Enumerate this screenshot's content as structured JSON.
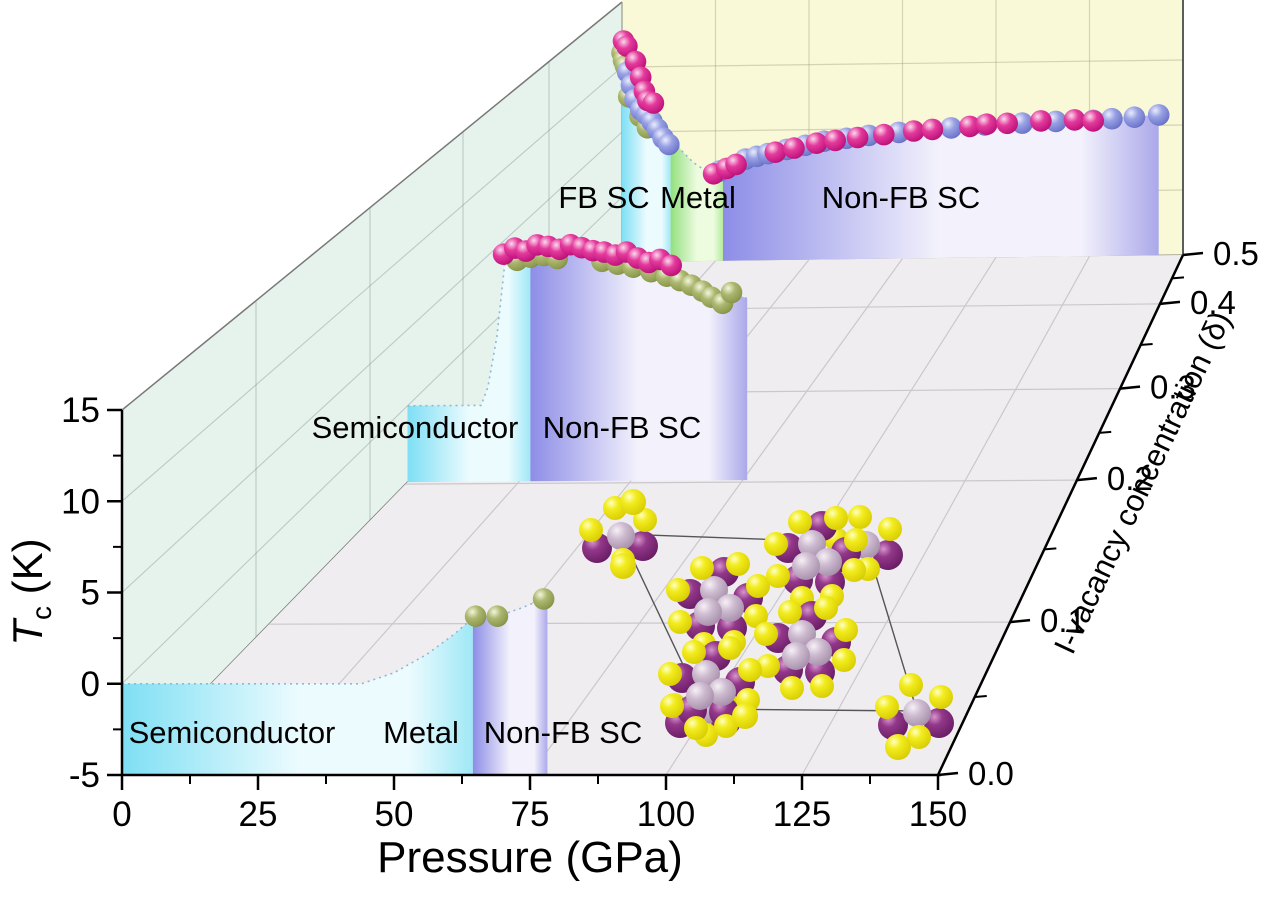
{
  "figure": {
    "kind": "3d-waterfall-phase-diagram",
    "background": "#FFFFFF"
  },
  "axes": {
    "pressure": {
      "title": "Pressure (GPa)",
      "ticks": [
        0,
        25,
        50,
        75,
        100,
        125,
        150
      ],
      "minor_step": 12.5,
      "range": [
        0,
        150
      ]
    },
    "tc": {
      "title": "Tc (K)",
      "title_symbol": "T",
      "title_subscript": "c",
      "title_suffix": " (K)",
      "ticks": [
        15,
        10,
        5,
        0,
        -5
      ],
      "minor_step": 2.5,
      "range": [
        -5,
        15
      ]
    },
    "delta": {
      "title": "I-vacancy concentration (δ)",
      "ticks": [
        "0.0",
        "0.1",
        "0.2",
        "0.3",
        "0.4",
        "0.5"
      ],
      "range": [
        0,
        0.5
      ]
    }
  },
  "colors": {
    "back_wall": "#FAF9D7",
    "left_wall": "#E6F2EC",
    "floor": "#EFEDEF",
    "grid": "#CBC8CC",
    "band_semiconductor": [
      "#7EDFF4",
      "#EBFBFE",
      "#9FE8F6"
    ],
    "band_metal": [
      "#92E07E",
      "#EDFBDF",
      "#B4EC9C"
    ],
    "band_sc": [
      "#8D8DE7",
      "#F3F2FC",
      "#ABA8EA"
    ],
    "point_magenta": "#D6248C",
    "point_blue": "#8089D8",
    "point_olive": "#9CA763",
    "atom_yellow": "#F2EC1E",
    "atom_purple": "#7D2B74",
    "atom_lavender": "#C2AEC6",
    "dotted_boundary": "#8FB8D6"
  },
  "chart_data": {
    "type": "scatter",
    "projection": "3d-perspective",
    "xlabel": "Pressure (GPa)",
    "ylabel": "Tc (K)",
    "zlabel": "I-vacancy concentration (δ)",
    "xlim": [
      0,
      150
    ],
    "ylim": [
      -5,
      15
    ],
    "zlim": [
      0,
      0.5
    ],
    "slices": [
      {
        "delta": 0.0,
        "region_labels": [
          {
            "text": "Semiconductor",
            "x": 232,
            "y": 743
          },
          {
            "text": "Metal",
            "x": 421,
            "y": 743
          },
          {
            "text": "Non-FB SC",
            "x": 563,
            "y": 743
          }
        ],
        "bands": [
          {
            "kind": "semiconductor",
            "profile": [
              [
                0,
                0
              ],
              [
                44,
                0
              ],
              [
                50,
                0.6
              ],
              [
                56,
                1.6
              ],
              [
                61,
                2.7
              ],
              [
                64.5,
                3.6
              ]
            ]
          },
          {
            "kind": "sc",
            "profile": [
              [
                64.5,
                3.6
              ],
              [
                65,
                3.7
              ],
              [
                69,
                3.7
              ],
              [
                73,
                4.1
              ],
              [
                77.5,
                4.65
              ],
              [
                78.2,
                4.7
              ]
            ]
          }
        ],
        "series": [
          {
            "color": "olive",
            "points": [
              [
                65,
                3.7
              ],
              [
                69,
                3.7
              ],
              [
                77.5,
                4.65
              ]
            ]
          }
        ]
      },
      {
        "delta": 0.25,
        "region_labels": [
          {
            "text": "Semiconductor",
            "x": 415,
            "y": 438
          },
          {
            "text": "Non-FB SC",
            "x": 622,
            "y": 438
          }
        ],
        "bands": [
          {
            "kind": "semiconductor",
            "profile": [
              [
                0,
                0
              ],
              [
                16.5,
                0
              ],
              [
                18,
                1.2
              ],
              [
                20,
                4.5
              ],
              [
                22,
                9.9
              ],
              [
                24,
                10.3
              ],
              [
                27.5,
                10.45
              ]
            ]
          },
          {
            "kind": "sc",
            "profile": [
              [
                27.5,
                10.45
              ],
              [
                29,
                10.5
              ],
              [
                33,
                10.4
              ],
              [
                36.5,
                10.5
              ],
              [
                41,
                10.2
              ],
              [
                46,
                9.9
              ],
              [
                51,
                9.6
              ],
              [
                56,
                9.2
              ],
              [
                61,
                8.2
              ],
              [
                63.5,
                7.8
              ],
              [
                66,
                7.4
              ],
              [
                68,
                7.0
              ],
              [
                70.5,
                6.6
              ],
              [
                72.5,
                7.3
              ],
              [
                76,
                6.9
              ]
            ]
          }
        ],
        "series": [
          {
            "color": "olive",
            "points": [
              [
                24.5,
                9.5
              ],
              [
                27.5,
                9.7
              ],
              [
                30.5,
                9.8
              ],
              [
                33.5,
                9.6
              ],
              [
                43.5,
                9.4
              ],
              [
                47,
                9.2
              ],
              [
                50.5,
                9.0
              ],
              [
                54.5,
                8.7
              ],
              [
                58,
                8.4
              ],
              [
                61,
                8.1
              ],
              [
                63.5,
                7.8
              ],
              [
                66,
                7.4
              ],
              [
                68,
                7.0
              ],
              [
                70.5,
                6.6
              ],
              [
                72.5,
                7.3
              ]
            ]
          },
          {
            "color": "magenta",
            "points": [
              [
                21.5,
                9.9
              ],
              [
                24,
                10.3
              ],
              [
                26.5,
                10.1
              ],
              [
                29,
                10.5
              ],
              [
                31.5,
                10.4
              ],
              [
                34,
                10.2
              ],
              [
                36.5,
                10.5
              ],
              [
                39,
                10.3
              ],
              [
                41.5,
                10.1
              ],
              [
                44,
                10.0
              ],
              [
                46.5,
                9.8
              ],
              [
                49,
                10.0
              ],
              [
                51.5,
                9.6
              ],
              [
                54,
                9.3
              ],
              [
                56.5,
                9.5
              ],
              [
                59,
                9.1
              ]
            ]
          }
        ]
      },
      {
        "delta": 0.5,
        "region_labels": [
          {
            "text": "FB SC",
            "x": 604,
            "y": 208
          },
          {
            "text": "Metal",
            "x": 698,
            "y": 208
          },
          {
            "text": "Non-FB SC",
            "x": 901,
            "y": 208
          }
        ],
        "bands": [
          {
            "kind": "semiconductor",
            "profile": [
              [
                0,
                12.2
              ],
              [
                1,
                11.6
              ],
              [
                2,
                11.0
              ],
              [
                3,
                10.4
              ],
              [
                4,
                9.8
              ],
              [
                5,
                9.1
              ],
              [
                6,
                8.4
              ],
              [
                7,
                7.8
              ],
              [
                8,
                7.2
              ],
              [
                9,
                6.6
              ],
              [
                10,
                6.0
              ],
              [
                11,
                5.5
              ],
              [
                12,
                5.0
              ],
              [
                13,
                4.6
              ]
            ]
          },
          {
            "kind": "metal",
            "profile": [
              [
                13,
                4.6
              ],
              [
                16,
                3.5
              ],
              [
                19,
                2.6
              ],
              [
                22,
                2.0
              ],
              [
                25.5,
                1.6
              ],
              [
                27,
                1.7
              ]
            ]
          },
          {
            "kind": "sc",
            "profile": [
              [
                27,
                1.7
              ],
              [
                30,
                2.1
              ],
              [
                35,
                2.7
              ],
              [
                40,
                3.2
              ],
              [
                45,
                3.5
              ],
              [
                50,
                3.8
              ],
              [
                55,
                4.05
              ],
              [
                60,
                4.25
              ],
              [
                65,
                4.4
              ],
              [
                70,
                4.55
              ],
              [
                75,
                4.7
              ],
              [
                80,
                4.85
              ],
              [
                85,
                4.95
              ],
              [
                90,
                5.05
              ],
              [
                95,
                5.15
              ],
              [
                100,
                5.25
              ],
              [
                105,
                5.3
              ],
              [
                110,
                5.4
              ],
              [
                115,
                5.45
              ],
              [
                120,
                5.5
              ],
              [
                125,
                5.55
              ],
              [
                130,
                5.6
              ],
              [
                135,
                5.7
              ],
              [
                140,
                5.75
              ],
              [
                143.5,
                5.8
              ]
            ]
          }
        ],
        "series": [
          {
            "color": "olive",
            "points": [
              [
                0,
                11.1
              ],
              [
                0.4,
                10.5
              ],
              [
                0.9,
                10.1
              ],
              [
                1.8,
                7.7
              ],
              [
                4.8,
                6.2
              ],
              [
                6.8,
                5.3
              ]
            ]
          },
          {
            "color": "blue",
            "points": [
              [
                1.5,
                9.6
              ],
              [
                2.5,
                8.6
              ],
              [
                3.5,
                7.5
              ],
              [
                5,
                6.7
              ],
              [
                6.6,
                6.3
              ],
              [
                8,
                5.8
              ],
              [
                9.5,
                5.2
              ],
              [
                11,
                4.5
              ],
              [
                12.5,
                4.0
              ],
              [
                26,
                1.9
              ],
              [
                33,
                2.8
              ],
              [
                36,
                3.0
              ],
              [
                39,
                3.2
              ],
              [
                44,
                3.5
              ],
              [
                49,
                3.8
              ],
              [
                54,
                4.1
              ],
              [
                60,
                4.3
              ],
              [
                66,
                4.5
              ],
              [
                74,
                4.7
              ],
              [
                88,
                5.0
              ],
              [
                97,
                5.2
              ],
              [
                107,
                5.3
              ],
              [
                116,
                5.4
              ],
              [
                126,
                5.45
              ],
              [
                131,
                5.55
              ],
              [
                137,
                5.65
              ],
              [
                143.5,
                5.8
              ]
            ]
          },
          {
            "color": "magenta",
            "points": [
              [
                0.4,
                12.0
              ],
              [
                1.3,
                11.6
              ],
              [
                3.6,
                10.4
              ],
              [
                5,
                9.2
              ],
              [
                6,
                8.1
              ],
              [
                6.9,
                7.4
              ],
              [
                8.4,
                7.2
              ],
              [
                24.5,
                1.7
              ],
              [
                28,
                2.1
              ],
              [
                30.5,
                2.4
              ],
              [
                41,
                3.3
              ],
              [
                46,
                3.6
              ],
              [
                52,
                3.95
              ],
              [
                57,
                4.15
              ],
              [
                63,
                4.35
              ],
              [
                70,
                4.55
              ],
              [
                78,
                4.8
              ],
              [
                83,
                4.9
              ],
              [
                93,
                5.1
              ],
              [
                97.5,
                5.25
              ],
              [
                103,
                5.3
              ],
              [
                112,
                5.45
              ],
              [
                121,
                5.5
              ],
              [
                126,
                5.4
              ]
            ]
          }
        ]
      }
    ]
  },
  "inset": {
    "name": "crystal-structure-top-view",
    "cell_corners": [
      [
        621,
        534
      ],
      [
        866,
        543
      ],
      [
        917,
        711
      ],
      [
        704,
        709
      ]
    ],
    "cluster_centers": [
      [
        718,
        602
      ],
      [
        816,
        556
      ],
      [
        806,
        646
      ],
      [
        710,
        686
      ]
    ],
    "corner_cluster_centers": [
      [
        621,
        534
      ],
      [
        866,
        543
      ],
      [
        917,
        711
      ],
      [
        704,
        709
      ]
    ],
    "lone_atoms": [
      [
        633,
        502
      ],
      [
        623,
        566
      ],
      [
        745,
        716
      ],
      [
        898,
        747
      ]
    ]
  }
}
